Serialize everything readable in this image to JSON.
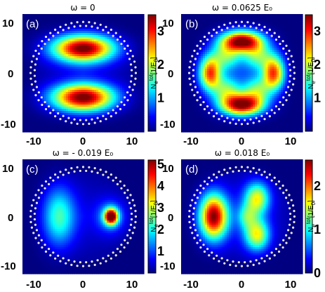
{
  "chart_data": [
    {
      "type": "heatmap",
      "panel_label": "(a)",
      "title": "ω = 0",
      "colorbar_label": "N_e^tot[1/E_0]",
      "xlim": [
        -12,
        12
      ],
      "ylim": [
        -12,
        12
      ],
      "x_ticks": [
        "-10",
        "0",
        "10"
      ],
      "y_ticks": [
        "10",
        "0",
        "-10"
      ],
      "clim": [
        0,
        3.5
      ],
      "colorbar_ticks": [
        1,
        2,
        3
      ],
      "colorbar_tick_labels": [
        "1",
        "2",
        "3"
      ],
      "blobs": [
        {
          "x": 0,
          "y": 5,
          "sx": 4.2,
          "sy": 1.9,
          "value": 3.4
        },
        {
          "x": 0,
          "y": -5,
          "sx": 4.2,
          "sy": 1.9,
          "value": 3.4
        }
      ],
      "background_level": 0.35
    },
    {
      "type": "heatmap",
      "panel_label": "(b)",
      "title": "ω = 0.0625 E₀",
      "colorbar_label": "N_e^tot[1/E_0]",
      "xlim": [
        -12,
        12
      ],
      "ylim": [
        -12,
        12
      ],
      "x_ticks": [
        "-10",
        "0",
        "10"
      ],
      "y_ticks": [
        "10",
        "0",
        "-10"
      ],
      "clim": [
        0,
        3.5
      ],
      "colorbar_ticks": [
        1,
        2,
        3
      ],
      "colorbar_tick_labels": [
        "1",
        "2",
        "3"
      ],
      "blobs": [
        {
          "x": 0,
          "y": 6.5,
          "sx": 2.8,
          "sy": 1.5,
          "value": 3.3
        },
        {
          "x": 0,
          "y": -6.5,
          "sx": 2.8,
          "sy": 1.5,
          "value": 3.3
        },
        {
          "x": -6.3,
          "y": 0,
          "sx": 1.5,
          "sy": 2.4,
          "value": 2.6
        },
        {
          "x": 6.3,
          "y": 0,
          "sx": 1.5,
          "sy": 2.4,
          "value": 2.6
        },
        {
          "x": -3,
          "y": 3.5,
          "sx": 2,
          "sy": 2,
          "value": 1.4
        },
        {
          "x": 3,
          "y": 3.5,
          "sx": 2,
          "sy": 2,
          "value": 1.4
        },
        {
          "x": -3,
          "y": -3.5,
          "sx": 2,
          "sy": 2,
          "value": 1.4
        },
        {
          "x": 3,
          "y": -3.5,
          "sx": 2,
          "sy": 2,
          "value": 1.4
        }
      ],
      "background_level": 0.35
    },
    {
      "type": "heatmap",
      "panel_label": "(c)",
      "title": "ω = - 0.019 E₀",
      "colorbar_label": "N_e^tot[1/E_0]",
      "xlim": [
        -12,
        12
      ],
      "ylim": [
        -12,
        12
      ],
      "x_ticks": [
        "-10",
        "0",
        "10"
      ],
      "y_ticks": [
        "10",
        "0",
        "-10"
      ],
      "clim": [
        0,
        5.2
      ],
      "colorbar_ticks": [
        1,
        2,
        3,
        4,
        5
      ],
      "colorbar_tick_labels": [
        "1",
        "2",
        "3",
        "4",
        "5"
      ],
      "blobs": [
        {
          "x": -4.8,
          "y": 0,
          "sx": 2.2,
          "sy": 4.2,
          "value": 2.0
        },
        {
          "x": 5.5,
          "y": 0,
          "sx": 0.9,
          "sy": 1.1,
          "value": 5.1
        },
        {
          "x": 5.5,
          "y": 0,
          "sx": 2.0,
          "sy": 2.4,
          "value": 1.3
        }
      ],
      "background_level": 0.5
    },
    {
      "type": "heatmap",
      "panel_label": "(d)",
      "title": "ω = 0.018 E₀",
      "colorbar_label": "N_e^tot[1/E_0]",
      "xlim": [
        -12,
        12
      ],
      "ylim": [
        -12,
        12
      ],
      "x_ticks": [
        "-10",
        "0",
        "10"
      ],
      "y_ticks": [
        "10",
        "0",
        "-10"
      ],
      "clim": [
        0,
        2.6
      ],
      "colorbar_ticks": [
        0,
        1,
        2
      ],
      "colorbar_tick_labels": [
        "0",
        "1",
        "2"
      ],
      "blobs": [
        {
          "x": -5.6,
          "y": 0,
          "sx": 1.9,
          "sy": 3.2,
          "value": 2.4
        },
        {
          "x": 3,
          "y": 3.8,
          "sx": 1.7,
          "sy": 2.3,
          "value": 1.4
        },
        {
          "x": 3,
          "y": -3.8,
          "sx": 1.7,
          "sy": 2.3,
          "value": 1.4
        },
        {
          "x": 1,
          "y": 0,
          "sx": 1.3,
          "sy": 1.8,
          "value": 0.7
        }
      ],
      "background_level": 0.35
    }
  ]
}
